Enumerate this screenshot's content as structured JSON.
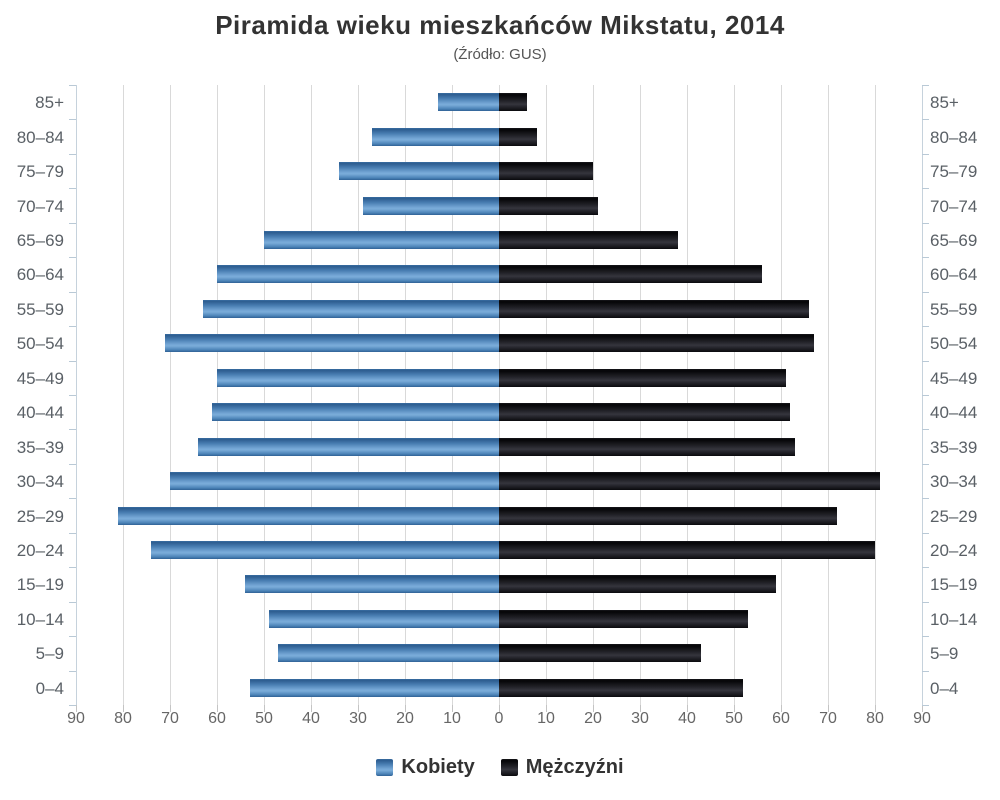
{
  "title": "Piramida wieku mieszkańców Mikstatu, 2014",
  "subtitle": "(Źródło: GUS)",
  "legend": {
    "items": [
      {
        "label": "Kobiety",
        "color": "#4a7fb3"
      },
      {
        "label": "Mężczyźni",
        "color": "#1a1a1e"
      }
    ]
  },
  "chart_data": {
    "type": "bar",
    "subtype": "population-pyramid",
    "title": "Piramida wieku mieszkańców Mikstatu, 2014",
    "subtitle": "(Źródło: GUS)",
    "categories": [
      "85+",
      "80–84",
      "75–79",
      "70–74",
      "65–69",
      "60–64",
      "55–59",
      "50–54",
      "45–49",
      "40–44",
      "35–39",
      "30–34",
      "25–29",
      "20–24",
      "15–19",
      "10–14",
      "5–9",
      "0–4"
    ],
    "series": [
      {
        "name": "Kobiety",
        "side": "left",
        "color": "#4a7fb3",
        "values": [
          13,
          27,
          34,
          29,
          50,
          60,
          63,
          71,
          60,
          61,
          64,
          70,
          81,
          74,
          54,
          49,
          47,
          53
        ]
      },
      {
        "name": "Mężczyźni",
        "side": "right",
        "color": "#1a1a1e",
        "values": [
          6,
          8,
          20,
          21,
          38,
          56,
          66,
          67,
          61,
          62,
          63,
          81,
          72,
          80,
          59,
          53,
          43,
          52
        ]
      }
    ],
    "xlim": [
      0,
      90
    ],
    "x_ticks": [
      90,
      80,
      70,
      60,
      50,
      40,
      30,
      20,
      10,
      0,
      10,
      20,
      30,
      40,
      50,
      60,
      70,
      80,
      90
    ],
    "grid": true,
    "legend_position": "bottom",
    "category_labels_position": "both-sides"
  }
}
